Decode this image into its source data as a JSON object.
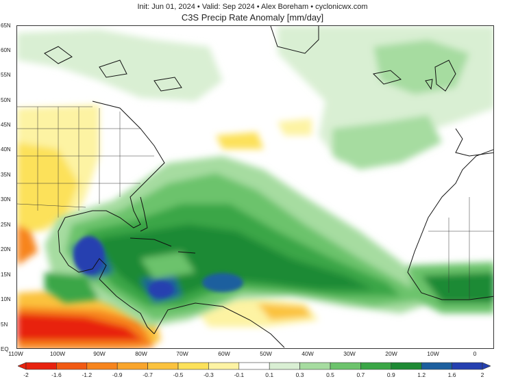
{
  "header": {
    "subtitle": "Init: Jun 01, 2024 • Valid: Sep 2024 • Alex Boreham • cyclonicwx.com",
    "title": "C3S Precip Rate Anomaly [mm/day]"
  },
  "map": {
    "lon_range": [
      -110,
      0
    ],
    "lat_range": [
      0,
      65
    ],
    "lat_labels": [
      "65N",
      "60N",
      "55N",
      "50N",
      "45N",
      "40N",
      "35N",
      "30N",
      "25N",
      "20N",
      "15N",
      "10N",
      "5N",
      "EQ"
    ],
    "lon_labels": [
      "110W",
      "100W",
      "90W",
      "80W",
      "70W",
      "60W",
      "50W",
      "40W",
      "30W",
      "20W",
      "10W",
      "0"
    ]
  },
  "colorbar": {
    "ticks": [
      "-2",
      "-1.6",
      "-1.2",
      "-0.9",
      "-0.7",
      "-0.5",
      "-0.3",
      "-0.1",
      "0.1",
      "0.3",
      "0.5",
      "0.7",
      "0.9",
      "1.2",
      "1.6",
      "2"
    ],
    "colors": [
      "#e8220e",
      "#f25a12",
      "#f7841c",
      "#f9a52c",
      "#fbc23e",
      "#fce15a",
      "#fdf3a3",
      "#ffffff",
      "#d9efd3",
      "#a6dca0",
      "#6cc36c",
      "#3aa646",
      "#1e8a34",
      "#1c5f9e",
      "#2540b0"
    ]
  }
}
